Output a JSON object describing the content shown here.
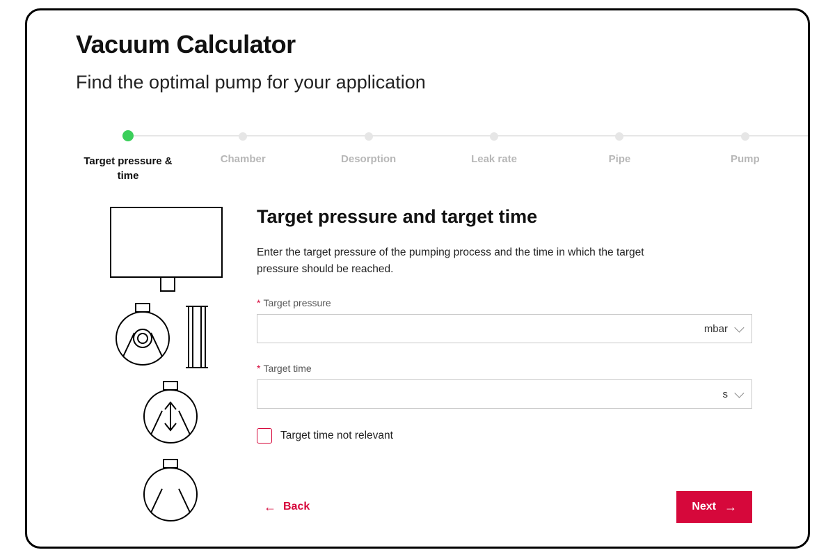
{
  "header": {
    "title": "Vacuum Calculator",
    "subtitle": "Find the optimal pump for your application"
  },
  "progress": {
    "active_index": 0,
    "active_color": "#3bcf5a",
    "inactive_color": "#e6e6e6",
    "steps": [
      {
        "label": "Target pressure & time"
      },
      {
        "label": "Chamber"
      },
      {
        "label": "Desorption"
      },
      {
        "label": "Leak rate"
      },
      {
        "label": "Pipe"
      },
      {
        "label": "Pump"
      }
    ]
  },
  "section": {
    "title": "Target pressure and target time",
    "description": "Enter the target pressure of the pumping process and the time in which the target pressure should be reached."
  },
  "fields": {
    "target_pressure": {
      "label": "Target pressure",
      "required_marker": "*",
      "value": "",
      "unit": "mbar"
    },
    "target_time": {
      "label": "Target time",
      "required_marker": "*",
      "value": "",
      "unit": "s"
    },
    "time_not_relevant": {
      "label": "Target time not relevant",
      "checked": false
    }
  },
  "actions": {
    "back": "Back",
    "next": "Next"
  },
  "colors": {
    "accent": "#d6083b",
    "text": "#111111",
    "muted": "#b7b7b7",
    "border": "#c7c7c7",
    "background": "#ffffff"
  },
  "diagram": {
    "stroke": "#000000",
    "stroke_width": 2
  }
}
